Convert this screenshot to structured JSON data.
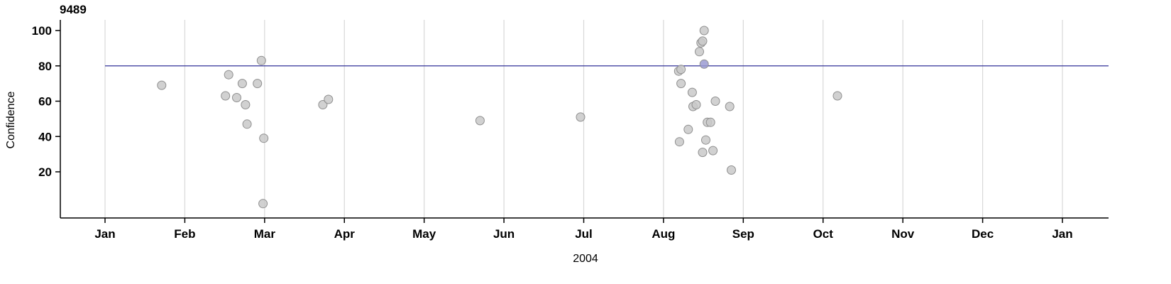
{
  "chart_data": {
    "type": "scatter",
    "title": "9489",
    "xlabel": "2004",
    "ylabel": "Confidence",
    "x_ticks": [
      "Jan",
      "Feb",
      "Mar",
      "Apr",
      "May",
      "Jun",
      "Jul",
      "Aug",
      "Sep",
      "Oct",
      "Nov",
      "Dec",
      "Jan"
    ],
    "y_ticks": [
      20,
      40,
      60,
      80,
      100
    ],
    "ylim": [
      0,
      105
    ],
    "grid": "vertical-month-gridlines",
    "legend": "none",
    "reference_line": {
      "y": 80,
      "color": "#333399"
    },
    "point_style": {
      "fill": "#c9c9c9",
      "stroke": "#8f8f8f",
      "radius": 6,
      "opacity": 0.85
    },
    "points": [
      {
        "month": 0.71,
        "confidence": 69
      },
      {
        "month": 1.51,
        "confidence": 63
      },
      {
        "month": 1.55,
        "confidence": 75
      },
      {
        "month": 1.65,
        "confidence": 62
      },
      {
        "month": 1.72,
        "confidence": 70
      },
      {
        "month": 1.76,
        "confidence": 58
      },
      {
        "month": 1.78,
        "confidence": 47
      },
      {
        "month": 1.91,
        "confidence": 70
      },
      {
        "month": 1.96,
        "confidence": 83
      },
      {
        "month": 1.99,
        "confidence": 39
      },
      {
        "month": 1.98,
        "confidence": 2
      },
      {
        "month": 2.73,
        "confidence": 58
      },
      {
        "month": 2.8,
        "confidence": 61
      },
      {
        "month": 4.7,
        "confidence": 49
      },
      {
        "month": 5.96,
        "confidence": 51
      },
      {
        "month": 7.19,
        "confidence": 77
      },
      {
        "month": 7.22,
        "confidence": 78
      },
      {
        "month": 7.22,
        "confidence": 70
      },
      {
        "month": 7.2,
        "confidence": 37
      },
      {
        "month": 7.31,
        "confidence": 44
      },
      {
        "month": 7.36,
        "confidence": 65
      },
      {
        "month": 7.37,
        "confidence": 57
      },
      {
        "month": 7.41,
        "confidence": 58
      },
      {
        "month": 7.45,
        "confidence": 88
      },
      {
        "month": 7.47,
        "confidence": 93
      },
      {
        "month": 7.49,
        "confidence": 94
      },
      {
        "month": 7.51,
        "confidence": 100
      },
      {
        "month": 7.51,
        "confidence": 81,
        "color": "#9a9ad1"
      },
      {
        "month": 7.49,
        "confidence": 31
      },
      {
        "month": 7.53,
        "confidence": 38
      },
      {
        "month": 7.55,
        "confidence": 48
      },
      {
        "month": 7.59,
        "confidence": 48
      },
      {
        "month": 7.65,
        "confidence": 60
      },
      {
        "month": 7.62,
        "confidence": 32
      },
      {
        "month": 7.83,
        "confidence": 57
      },
      {
        "month": 7.85,
        "confidence": 21
      },
      {
        "month": 9.18,
        "confidence": 63
      }
    ]
  }
}
